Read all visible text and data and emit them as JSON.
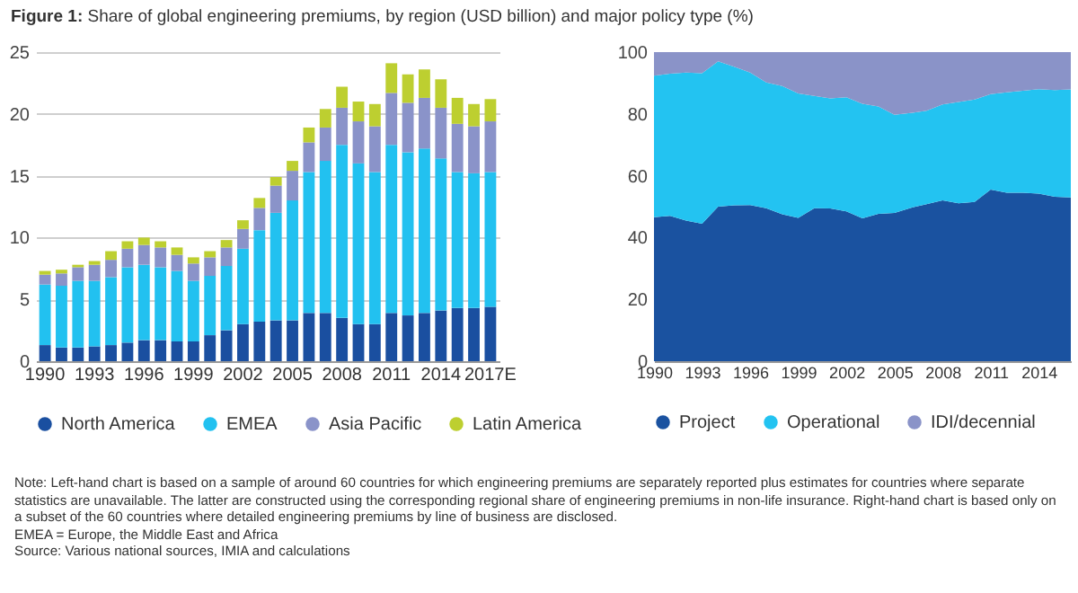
{
  "chart_data": [
    {
      "type": "bar",
      "title": "Figure 1: Share of global engineering premiums, by region (USD billion) and major policy type (%)",
      "stacked": true,
      "categories": [
        "1990",
        null,
        null,
        "1993",
        null,
        null,
        "1996",
        null,
        null,
        "1999",
        null,
        null,
        "2002",
        null,
        null,
        "2005",
        null,
        null,
        "2008",
        null,
        null,
        "2011",
        null,
        null,
        "2014",
        null,
        null,
        "2017E"
      ],
      "series": [
        {
          "name": "North America",
          "color": "#1a4fa0",
          "values": [
            1.3,
            1.1,
            1.1,
            1.2,
            1.3,
            1.5,
            1.7,
            1.7,
            1.6,
            1.6,
            2.1,
            2.5,
            3.0,
            3.2,
            3.3,
            3.3,
            3.9,
            3.9,
            3.5,
            3.0,
            3.0,
            3.9,
            3.7,
            3.9,
            4.1,
            4.3,
            4.3,
            4.4
          ]
        },
        {
          "name": "EMEA",
          "color": "#22c1f0",
          "values": [
            4.9,
            5.0,
            5.4,
            5.3,
            5.5,
            6.1,
            6.1,
            5.9,
            5.7,
            4.9,
            4.8,
            5.2,
            6.1,
            7.4,
            8.7,
            9.7,
            11.4,
            12.3,
            14.0,
            13.0,
            12.3,
            13.6,
            13.2,
            13.3,
            12.3,
            11.0,
            10.9,
            10.9
          ]
        },
        {
          "name": "Asia Pacific",
          "color": "#8a93c9",
          "values": [
            0.8,
            1.0,
            1.1,
            1.3,
            1.4,
            1.5,
            1.6,
            1.6,
            1.3,
            1.4,
            1.5,
            1.5,
            1.6,
            1.8,
            2.2,
            2.4,
            2.4,
            2.7,
            3.0,
            3.4,
            3.7,
            4.2,
            4.0,
            4.1,
            4.1,
            3.9,
            3.8,
            4.1
          ]
        },
        {
          "name": "Latin America",
          "color": "#bdcf30",
          "values": [
            0.3,
            0.3,
            0.2,
            0.3,
            0.7,
            0.6,
            0.6,
            0.5,
            0.6,
            0.5,
            0.5,
            0.6,
            0.7,
            0.8,
            0.7,
            0.8,
            1.2,
            1.5,
            1.7,
            1.6,
            1.8,
            2.4,
            2.3,
            2.3,
            2.3,
            2.1,
            1.8,
            1.8
          ]
        }
      ],
      "ylim": [
        0,
        25
      ],
      "yticks": [
        0,
        5,
        10,
        15,
        20,
        25
      ],
      "grid": "y",
      "legend": "bottom",
      "annotations": [
        "Note: Left-hand chart is based on a sample of around 60 countries for which engineering premiums are separately reported plus estimates for countries where separate statistics are unavailable. The latter are constructed using the corresponding regional share of engineering premiums in non-life insurance. Right-hand chart is based only on a subset of the 60 countries where detailed engineering premiums by line of business are disclosed.",
        "EMEA = Europe, the Middle East and Africa",
        "Source: Various national sources, IMIA and calculations"
      ]
    },
    {
      "type": "area",
      "stacked": true,
      "x": [
        1990,
        1991,
        1992,
        1993,
        1994,
        1995,
        1996,
        1997,
        1998,
        1999,
        2000,
        2001,
        2002,
        2003,
        2004,
        2005,
        2006,
        2007,
        2008,
        2009,
        2010,
        2011,
        2012,
        2013,
        2014,
        2015,
        2016
      ],
      "series": [
        {
          "name": "Project",
          "color": "#1a52a0",
          "values": [
            46.6,
            47,
            45.5,
            44.5,
            50,
            50.4,
            50.5,
            49.5,
            47.5,
            46.4,
            49.5,
            49.4,
            48.5,
            46.2,
            47.7,
            48,
            49.6,
            50.8,
            52,
            51.1,
            51.5,
            55.5,
            54.5,
            54.5,
            54.2,
            53.2,
            53
          ]
        },
        {
          "name": "Operational",
          "color": "#23c3f1",
          "values": [
            45.8,
            46,
            47.9,
            48.7,
            47,
            44.9,
            42.9,
            40.7,
            41.5,
            40.2,
            36.3,
            35.6,
            36.9,
            37.1,
            34.7,
            31.7,
            30.7,
            30.2,
            31.1,
            32.8,
            33.2,
            30.9,
            32.5,
            33,
            33.8,
            34.5,
            34.9
          ]
        },
        {
          "name": "IDI/decennial",
          "color": "#8a93c8",
          "values": [
            7.6,
            7,
            6.6,
            6.8,
            3,
            4.7,
            6.6,
            9.8,
            11,
            13.4,
            14.2,
            15,
            14.6,
            16.7,
            17.6,
            20.3,
            19.7,
            19,
            16.9,
            16.1,
            15.3,
            13.6,
            13,
            12.5,
            12,
            12.3,
            12.1
          ]
        }
      ],
      "xlim": [
        1990,
        2016
      ],
      "xticks": [
        1990,
        1993,
        1996,
        1999,
        2002,
        2005,
        2008,
        2011,
        2014
      ],
      "ylim": [
        0,
        100
      ],
      "yticks": [
        0,
        20,
        40,
        60,
        80,
        100
      ],
      "legend": "bottom"
    }
  ]
}
